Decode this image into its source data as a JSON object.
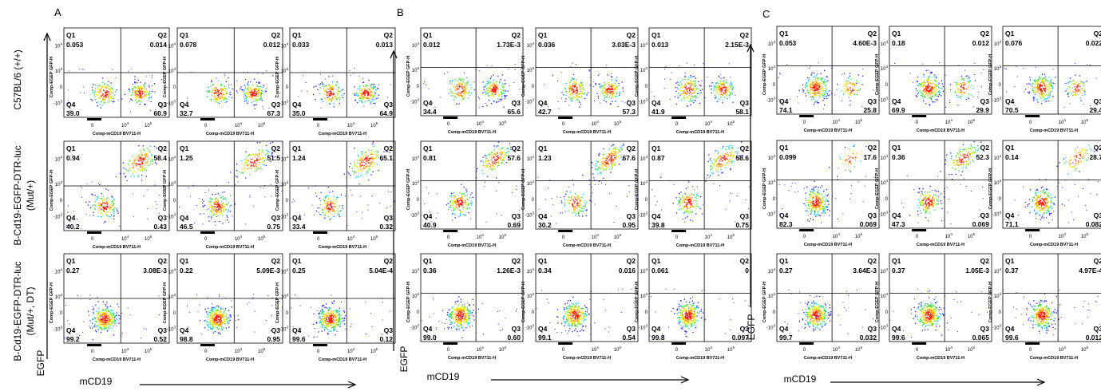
{
  "figure": {
    "row_labels": [
      "C57BL/6 (+/+)",
      [
        "B-Cd19-EGFP-DTR-luc",
        "(Mut/+)"
      ],
      [
        "B-Cd19-EGFP-DTR-luc",
        "(Mut/+, DT)"
      ]
    ],
    "x_axis_label": "mCD19",
    "y_axis_label": "EGFP",
    "plot_axis_x_title": "Comp-mCD19 BV711-H",
    "plot_axis_y_title": "Comp-EGEP GFP-H",
    "quadrant_names": [
      "Q1",
      "Q2",
      "Q3",
      "Q4"
    ],
    "x_ticks": [
      "0",
      "10^4",
      "10^5"
    ],
    "y_ticks": [
      "10^4",
      "10^3",
      "0",
      "-10^3"
    ]
  },
  "chart_data": [
    {
      "type": "scatter",
      "panel": "A",
      "grid": {
        "rows": 3,
        "cols": 3
      },
      "description_of_values": "quadrant percentages per flow cytometry plot",
      "plots": [
        {
          "row": 0,
          "col": 0,
          "q1": "0.053",
          "q2": "0.014",
          "q3": "60.9",
          "q4": "39.0"
        },
        {
          "row": 0,
          "col": 1,
          "q1": "0.078",
          "q2": "0.012",
          "q3": "67.3",
          "q4": "32.7"
        },
        {
          "row": 0,
          "col": 2,
          "q1": "0.033",
          "q2": "0.013",
          "q3": "64.9",
          "q4": "35.0"
        },
        {
          "row": 1,
          "col": 0,
          "q1": "0.94",
          "q2": "58.4",
          "q3": "0.43",
          "q4": "40.2"
        },
        {
          "row": 1,
          "col": 1,
          "q1": "1.25",
          "q2": "51.5",
          "q3": "0.75",
          "q4": "46.5"
        },
        {
          "row": 1,
          "col": 2,
          "q1": "1.24",
          "q2": "65.1",
          "q3": "0.32",
          "q4": "33.4"
        },
        {
          "row": 2,
          "col": 0,
          "q1": "0.27",
          "q2": "3.08E-3",
          "q3": "0.52",
          "q4": "99.2"
        },
        {
          "row": 2,
          "col": 1,
          "q1": "0.22",
          "q2": "5.09E-3",
          "q3": "0.95",
          "q4": "98.8"
        },
        {
          "row": 2,
          "col": 2,
          "q1": "0.25",
          "q2": "5.04E-4",
          "q3": "0.12",
          "q4": "99.6"
        }
      ]
    },
    {
      "type": "scatter",
      "panel": "B",
      "grid": {
        "rows": 3,
        "cols": 3
      },
      "plots": [
        {
          "row": 0,
          "col": 0,
          "q1": "0.012",
          "q2": "1.73E-3",
          "q3": "65.6",
          "q4": "34.4"
        },
        {
          "row": 0,
          "col": 1,
          "q1": "0.036",
          "q2": "3.03E-3",
          "q3": "57.3",
          "q4": "42.7"
        },
        {
          "row": 0,
          "col": 2,
          "q1": "0.013",
          "q2": "2.15E-3",
          "q3": "58.1",
          "q4": "41.9"
        },
        {
          "row": 1,
          "col": 0,
          "q1": "0.81",
          "q2": "57.6",
          "q3": "0.69",
          "q4": "40.9"
        },
        {
          "row": 1,
          "col": 1,
          "q1": "1.23",
          "q2": "67.6",
          "q3": "0.95",
          "q4": "30.2"
        },
        {
          "row": 1,
          "col": 2,
          "q1": "0.87",
          "q2": "58.6",
          "q3": "0.75",
          "q4": "39.8"
        },
        {
          "row": 2,
          "col": 0,
          "q1": "0.36",
          "q2": "1.26E-3",
          "q3": "0.60",
          "q4": "99.0"
        },
        {
          "row": 2,
          "col": 1,
          "q1": "0.34",
          "q2": "0.016",
          "q3": "0.54",
          "q4": "99.1"
        },
        {
          "row": 2,
          "col": 2,
          "q1": "0.061",
          "q2": "0",
          "q3": "0.097",
          "q4": "99.8"
        }
      ]
    },
    {
      "type": "scatter",
      "panel": "C",
      "grid": {
        "rows": 3,
        "cols": 3
      },
      "plots": [
        {
          "row": 0,
          "col": 0,
          "q1": "0.053",
          "q2": "4.60E-3",
          "q3": "25.8",
          "q4": "74.1"
        },
        {
          "row": 0,
          "col": 1,
          "q1": "0.18",
          "q2": "0.012",
          "q3": "29.9",
          "q4": "69.9"
        },
        {
          "row": 0,
          "col": 2,
          "q1": "0.076",
          "q2": "0.022",
          "q3": "29.4",
          "q4": "70.5"
        },
        {
          "row": 1,
          "col": 0,
          "q1": "0.099",
          "q2": "17.6",
          "q3": "0.069",
          "q4": "82.3"
        },
        {
          "row": 1,
          "col": 1,
          "q1": "0.36",
          "q2": "52.3",
          "q3": "0.069",
          "q4": "47.3"
        },
        {
          "row": 1,
          "col": 2,
          "q1": "0.14",
          "q2": "28.7",
          "q3": "0.082",
          "q4": "71.1"
        },
        {
          "row": 2,
          "col": 0,
          "q1": "0.27",
          "q2": "3.64E-3",
          "q3": "0.032",
          "q4": "99.7"
        },
        {
          "row": 2,
          "col": 1,
          "q1": "0.37",
          "q2": "1.05E-3",
          "q3": "0.065",
          "q4": "99.6"
        },
        {
          "row": 2,
          "col": 2,
          "q1": "0.37",
          "q2": "4.97E-4",
          "q3": "0.012",
          "q4": "99.6"
        }
      ]
    }
  ]
}
